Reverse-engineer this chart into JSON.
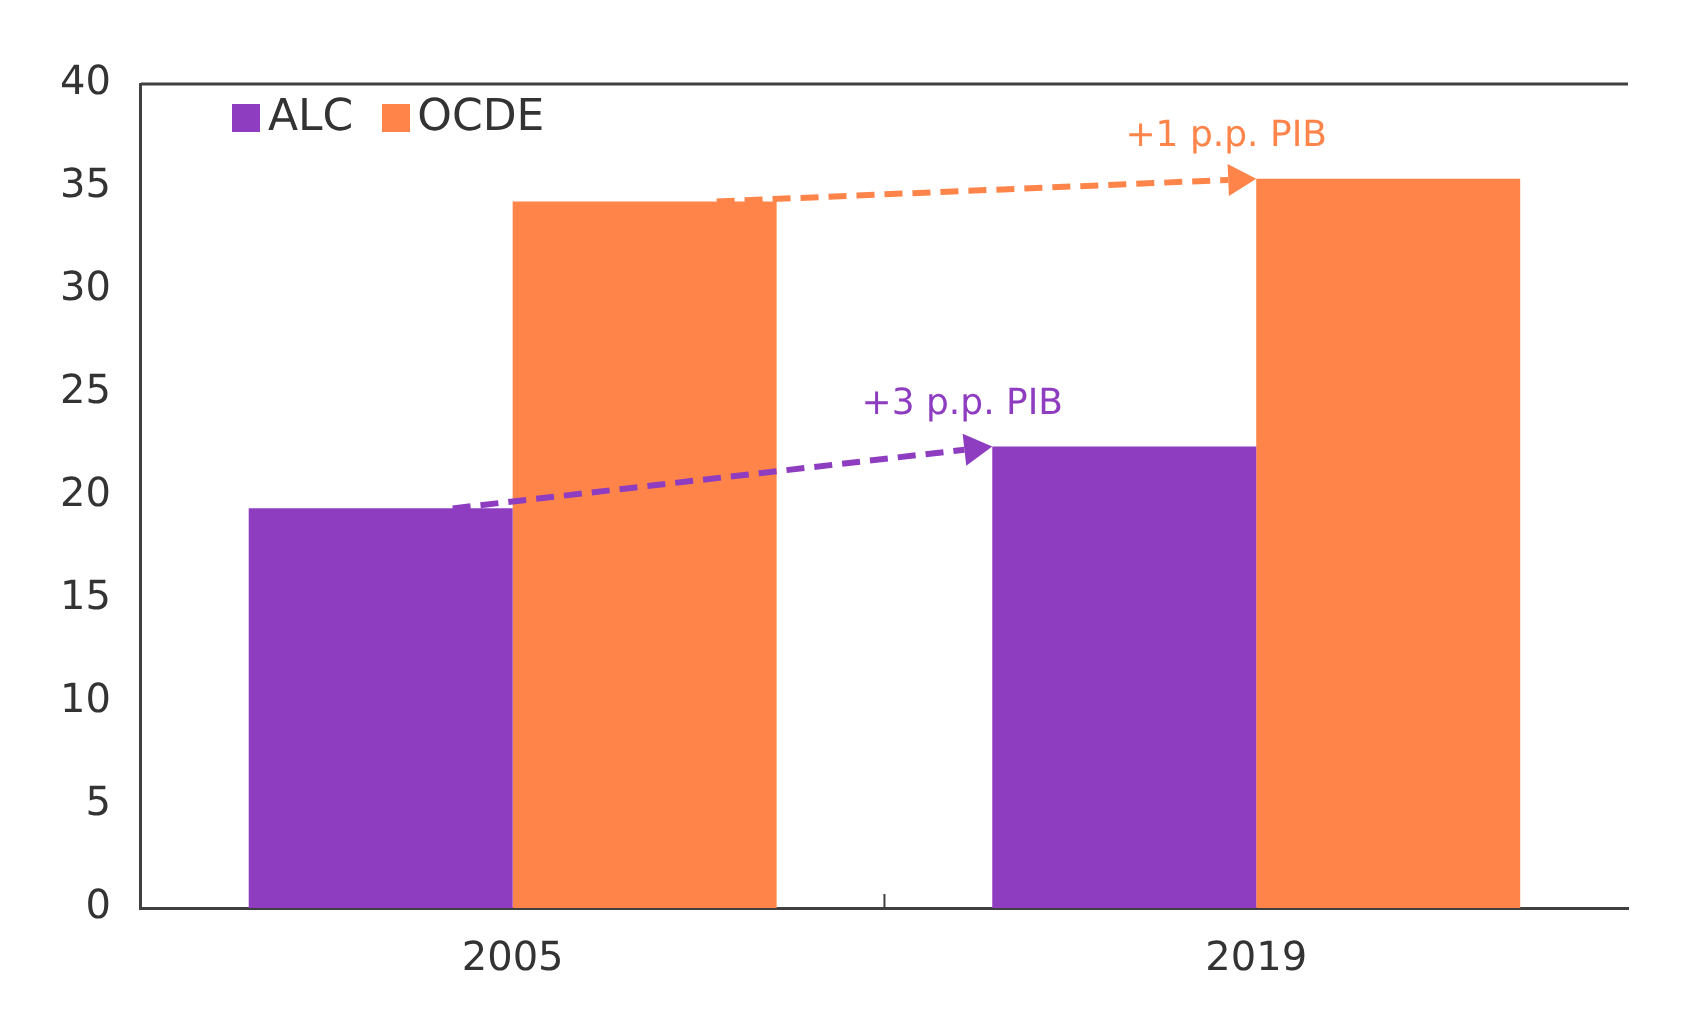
{
  "chart_data": {
    "type": "bar",
    "categories": [
      "2005",
      "2019"
    ],
    "series": [
      {
        "name": "ALC",
        "color": "#8e3cc0",
        "values": [
          19.4,
          22.4
        ]
      },
      {
        "name": "OCDE",
        "color": "#ff8449",
        "values": [
          34.3,
          35.4
        ]
      }
    ],
    "ylim": [
      0,
      40
    ],
    "yticks": [
      0,
      5,
      10,
      15,
      20,
      25,
      30,
      35,
      40
    ],
    "grid": false,
    "legend": "top left",
    "annotations": [
      "+3 p.p. PIB",
      "+1 p.p. PIB"
    ]
  }
}
